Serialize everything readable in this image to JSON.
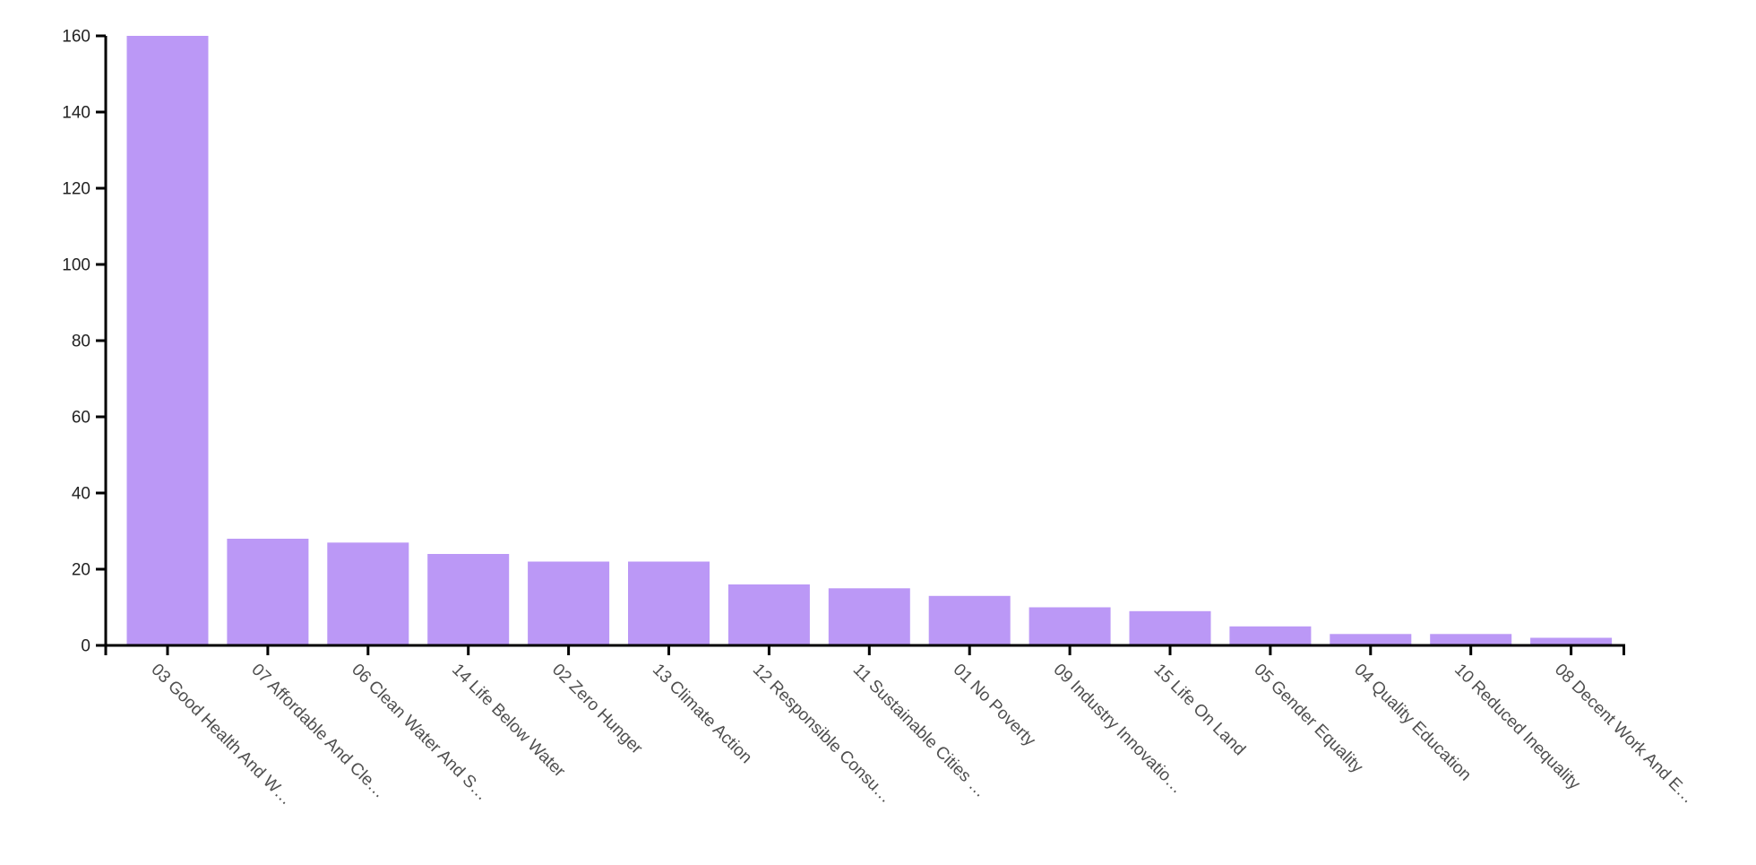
{
  "chart_data": {
    "type": "bar",
    "title": "",
    "xlabel": "",
    "ylabel": "",
    "categories": [
      "03 Good Health And W…",
      "07 Affordable And Cle…",
      "06 Clean Water And S…",
      "14 Life Below Water",
      "02 Zero Hunger",
      "13 Climate Action",
      "12 Responsible Consu…",
      "11 Sustainable Cities …",
      "01 No Poverty",
      "09 Industry Innovatio…",
      "15 Life On Land",
      "05 Gender Equality",
      "04 Quality Education",
      "10 Reduced Inequality",
      "08 Decent Work And E…"
    ],
    "values": [
      160,
      28,
      27,
      24,
      22,
      22,
      16,
      15,
      13,
      10,
      9,
      5,
      3,
      3,
      2
    ],
    "ylim": [
      0,
      160
    ],
    "yticks": [
      0,
      20,
      40,
      60,
      80,
      100,
      120,
      140,
      160
    ],
    "x_label_rotation_deg": 45,
    "grid": false,
    "legend": false,
    "background_color": "#ffffff",
    "bar_color": "#bb98f6",
    "axis_color": "#000000",
    "y_label_color": "#222222",
    "x_label_color": "#4f4f4f"
  }
}
